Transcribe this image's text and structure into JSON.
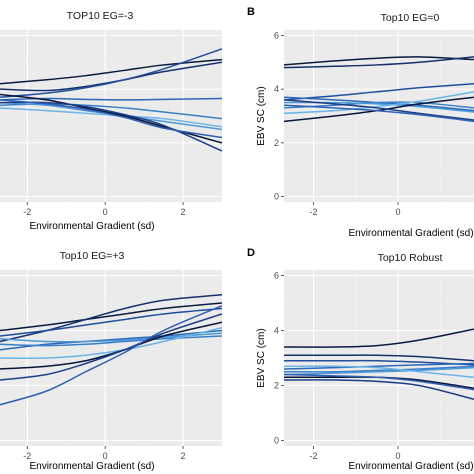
{
  "colors": {
    "panel_bg": "#ebebeb",
    "grid_major": "#ffffff",
    "grid_minor": "#f3f3f3",
    "lines": [
      "#0b1a3d",
      "#16306b",
      "#1f4f9c",
      "#2b6ab7",
      "#3a80c8",
      "#4d98d8",
      "#6ab4e8",
      "#08153a",
      "#1b3f86",
      "#2f5fb0"
    ]
  },
  "chart_data": [
    {
      "type": "line",
      "panel_label": "",
      "title": "TOP10 EG=-3",
      "xlabel": "Environmental Gradient (sd)",
      "ylabel": "",
      "xlim": [
        -2.7,
        3
      ],
      "ylim": [
        -0.2,
        6.2
      ],
      "x_ticks": [
        -2,
        0,
        2
      ],
      "x_tick_labels": [
        "-2",
        "0",
        "2"
      ],
      "y_ticks": [],
      "y_tick_labels": [],
      "grid": true,
      "x": [
        -2.7,
        -1.5,
        -0.5,
        0.5,
        1.5,
        3
      ],
      "series": [
        {
          "values": [
            4.2,
            4.35,
            4.5,
            4.7,
            4.9,
            5.1
          ]
        },
        {
          "values": [
            4.0,
            3.95,
            4.1,
            4.35,
            4.65,
            5.0
          ]
        },
        {
          "values": [
            3.7,
            3.85,
            4.05,
            4.35,
            4.75,
            5.5
          ]
        },
        {
          "values": [
            3.6,
            3.65,
            3.62,
            3.6,
            3.62,
            3.65
          ]
        },
        {
          "values": [
            3.4,
            3.45,
            3.4,
            3.3,
            3.15,
            2.9
          ]
        },
        {
          "values": [
            3.5,
            3.4,
            3.2,
            3.0,
            2.8,
            2.5
          ]
        },
        {
          "values": [
            3.3,
            3.2,
            3.1,
            3.0,
            2.9,
            2.6
          ]
        },
        {
          "values": [
            3.8,
            3.6,
            3.3,
            3.0,
            2.6,
            2.0
          ]
        },
        {
          "values": [
            3.5,
            3.5,
            3.35,
            3.05,
            2.65,
            1.7
          ]
        },
        {
          "values": [
            3.6,
            3.45,
            3.25,
            2.95,
            2.55,
            2.2
          ]
        }
      ]
    },
    {
      "type": "line",
      "panel_label": "B",
      "title": "Top10 EG=0",
      "xlabel": "Environmental Gradient (sd)",
      "ylabel": "EBV SC (cm)",
      "xlim": [
        -2.7,
        1.8
      ],
      "ylim": [
        -0.2,
        6.2
      ],
      "x_ticks": [
        -2,
        0
      ],
      "x_tick_labels": [
        "-2",
        "0"
      ],
      "y_ticks": [
        0,
        2,
        4,
        6
      ],
      "y_tick_labels": [
        "0",
        "2",
        "4",
        "6"
      ],
      "grid": true,
      "x": [
        -2.7,
        -1.5,
        -0.5,
        0.5,
        1.8
      ],
      "series": [
        {
          "values": [
            4.9,
            5.05,
            5.15,
            5.2,
            5.1
          ]
        },
        {
          "values": [
            4.8,
            4.85,
            4.9,
            5.0,
            5.2
          ]
        },
        {
          "values": [
            3.6,
            3.75,
            3.9,
            4.05,
            4.2
          ]
        },
        {
          "values": [
            3.7,
            3.6,
            3.5,
            3.4,
            3.2
          ]
        },
        {
          "values": [
            3.3,
            3.4,
            3.5,
            3.5,
            3.3
          ]
        },
        {
          "values": [
            3.5,
            3.5,
            3.45,
            3.35,
            3.15
          ]
        },
        {
          "values": [
            3.1,
            3.2,
            3.35,
            3.55,
            3.9
          ]
        },
        {
          "values": [
            2.8,
            3.0,
            3.2,
            3.45,
            3.7
          ]
        },
        {
          "values": [
            3.6,
            3.45,
            3.3,
            3.1,
            2.85
          ]
        },
        {
          "values": [
            3.4,
            3.3,
            3.2,
            3.05,
            2.8
          ]
        }
      ]
    },
    {
      "type": "line",
      "panel_label": "",
      "title": "Top10 EG=+3",
      "xlabel": "Environmental Gradient (sd)",
      "ylabel": "",
      "xlim": [
        -2.7,
        3
      ],
      "ylim": [
        -0.2,
        6.2
      ],
      "x_ticks": [
        -2,
        0,
        2
      ],
      "x_tick_labels": [
        "-2",
        "0",
        "2"
      ],
      "y_ticks": [],
      "y_tick_labels": [],
      "grid": true,
      "x": [
        -2.7,
        -1.5,
        -0.5,
        0.5,
        1.5,
        3
      ],
      "series": [
        {
          "values": [
            4.0,
            4.2,
            4.4,
            4.6,
            4.8,
            5.0
          ]
        },
        {
          "values": [
            3.6,
            4.0,
            4.4,
            4.8,
            5.1,
            5.3
          ]
        },
        {
          "values": [
            3.8,
            4.0,
            4.2,
            4.4,
            4.6,
            4.8
          ]
        },
        {
          "values": [
            3.3,
            3.5,
            3.6,
            3.7,
            3.8,
            4.0
          ]
        },
        {
          "values": [
            3.5,
            3.45,
            3.5,
            3.6,
            3.7,
            3.8
          ]
        },
        {
          "values": [
            3.7,
            3.6,
            3.6,
            3.65,
            3.75,
            3.9
          ]
        },
        {
          "values": [
            3.0,
            3.0,
            3.1,
            3.3,
            3.6,
            4.1
          ]
        },
        {
          "values": [
            2.6,
            2.7,
            2.9,
            3.3,
            3.8,
            4.3
          ]
        },
        {
          "values": [
            2.2,
            2.4,
            2.8,
            3.3,
            3.9,
            4.6
          ]
        },
        {
          "values": [
            1.3,
            1.8,
            2.5,
            3.2,
            4.0,
            4.9
          ]
        }
      ]
    },
    {
      "type": "line",
      "panel_label": "D",
      "title": "Top10 Robust",
      "xlabel": "Environmental Gradient (sd)",
      "ylabel": "EBV SC (cm)",
      "xlim": [
        -2.7,
        1.8
      ],
      "ylim": [
        -0.2,
        6.2
      ],
      "x_ticks": [
        -2,
        0
      ],
      "x_tick_labels": [
        "-2",
        "0"
      ],
      "y_ticks": [
        0,
        2,
        4,
        6
      ],
      "y_tick_labels": [
        "0",
        "2",
        "4",
        "6"
      ],
      "grid": true,
      "x": [
        -2.7,
        -1.5,
        -0.5,
        0.5,
        1.8
      ],
      "series": [
        {
          "values": [
            3.4,
            3.4,
            3.45,
            3.65,
            4.05
          ]
        },
        {
          "values": [
            3.1,
            3.1,
            3.1,
            3.05,
            2.9
          ]
        },
        {
          "values": [
            2.9,
            2.9,
            2.9,
            2.85,
            2.75
          ]
        },
        {
          "values": [
            2.6,
            2.65,
            2.7,
            2.75,
            2.8
          ]
        },
        {
          "values": [
            2.5,
            2.5,
            2.55,
            2.6,
            2.7
          ]
        },
        {
          "values": [
            2.4,
            2.45,
            2.5,
            2.55,
            2.65
          ]
        },
        {
          "values": [
            2.7,
            2.7,
            2.65,
            2.5,
            2.3
          ]
        },
        {
          "values": [
            2.3,
            2.3,
            2.3,
            2.2,
            1.9
          ]
        },
        {
          "values": [
            2.2,
            2.2,
            2.15,
            2.0,
            1.5
          ]
        },
        {
          "values": [
            2.4,
            2.35,
            2.3,
            2.15,
            1.85
          ]
        }
      ]
    }
  ]
}
